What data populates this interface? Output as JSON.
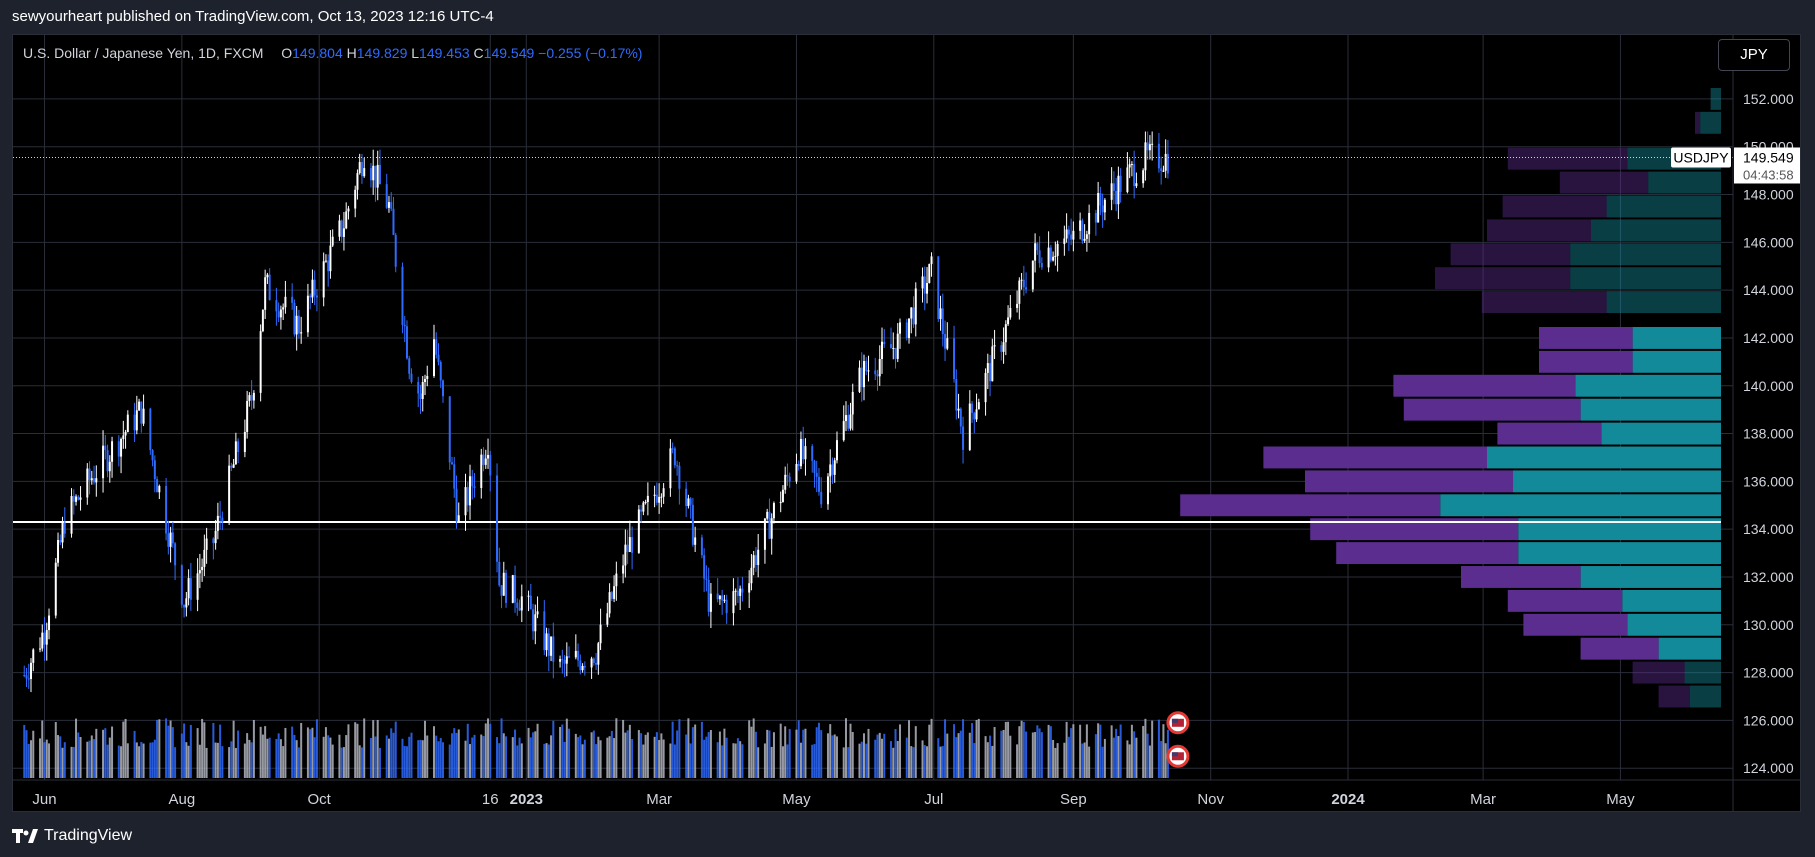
{
  "header": {
    "published_line": "sewyourheart published on TradingView.com, Oct 13, 2023 12:16 UTC-4"
  },
  "legend": {
    "instrument": "U.S. Dollar / Japanese Yen, 1D, FXCM",
    "open_label": "O",
    "open": "149.804",
    "high_label": "H",
    "high": "149.829",
    "low_label": "L",
    "low": "149.453",
    "close_label": "C",
    "close": "149.549",
    "change": "−0.255 (−0.17%)"
  },
  "currency_button": "JPY",
  "price_tag": {
    "symbol": "USDJPY",
    "price": "149.549",
    "countdown": "04:43:58"
  },
  "footer": {
    "brand": "TradingView"
  },
  "colors": {
    "background": "#000000",
    "up_candle": "#ffffff",
    "down_candle": "#2f6bff",
    "volume_up": "#b2b5be",
    "volume_down": "#2f6bff",
    "profile_purple": "#5b2d8f",
    "profile_teal": "#138a99",
    "poc_line": "#ffffff"
  },
  "chart_data": {
    "type": "candlestick",
    "symbol": "USDJPY",
    "timeframe": "1D",
    "y_axis_ticks": [
      "124.000",
      "126.000",
      "128.000",
      "130.000",
      "132.000",
      "134.000",
      "136.000",
      "138.000",
      "140.000",
      "142.000",
      "144.000",
      "146.000",
      "148.000",
      "150.000",
      "152.000"
    ],
    "y_range": [
      123.8,
      153.0
    ],
    "x_axis_ticks": [
      "Jun",
      "Aug",
      "Oct",
      "16",
      "2023",
      "Mar",
      "May",
      "Jul",
      "Sep",
      "Nov",
      "2024",
      "Mar",
      "May"
    ],
    "last_price": 149.549,
    "point_of_control": 134.3,
    "price_path": [
      {
        "date": "2022-05-23",
        "close": 127.9
      },
      {
        "date": "2022-06-01",
        "close": 129.8
      },
      {
        "date": "2022-06-10",
        "close": 134.4
      },
      {
        "date": "2022-06-22",
        "close": 136.2
      },
      {
        "date": "2022-07-14",
        "close": 139.0
      },
      {
        "date": "2022-08-02",
        "close": 131.0
      },
      {
        "date": "2022-08-15",
        "close": 133.5
      },
      {
        "date": "2022-09-01",
        "close": 139.5
      },
      {
        "date": "2022-09-07",
        "close": 144.2
      },
      {
        "date": "2022-09-22",
        "close": 142.5
      },
      {
        "date": "2022-10-12",
        "close": 146.8
      },
      {
        "date": "2022-10-21",
        "close": 149.8
      },
      {
        "date": "2022-11-01",
        "close": 147.5
      },
      {
        "date": "2022-11-10",
        "close": 141.0
      },
      {
        "date": "2022-11-15",
        "close": 139.5
      },
      {
        "date": "2022-11-21",
        "close": 142.0
      },
      {
        "date": "2022-12-02",
        "close": 134.3
      },
      {
        "date": "2022-12-15",
        "close": 137.8
      },
      {
        "date": "2022-12-20",
        "close": 131.8
      },
      {
        "date": "2022-12-30",
        "close": 131.1
      },
      {
        "date": "2023-01-16",
        "close": 128.2
      },
      {
        "date": "2023-02-01",
        "close": 128.9
      },
      {
        "date": "2023-02-14",
        "close": 133.0
      },
      {
        "date": "2023-03-08",
        "close": 137.2
      },
      {
        "date": "2023-03-24",
        "close": 130.7
      },
      {
        "date": "2023-04-05",
        "close": 131.2
      },
      {
        "date": "2023-04-20",
        "close": 134.5
      },
      {
        "date": "2023-05-02",
        "close": 137.3
      },
      {
        "date": "2023-05-12",
        "close": 135.6
      },
      {
        "date": "2023-05-30",
        "close": 140.5
      },
      {
        "date": "2023-06-15",
        "close": 141.8
      },
      {
        "date": "2023-06-30",
        "close": 144.8
      },
      {
        "date": "2023-07-14",
        "close": 138.0
      },
      {
        "date": "2023-07-28",
        "close": 141.2
      },
      {
        "date": "2023-08-15",
        "close": 145.5
      },
      {
        "date": "2023-09-01",
        "close": 146.2
      },
      {
        "date": "2023-09-15",
        "close": 147.8
      },
      {
        "date": "2023-10-03",
        "close": 149.5
      },
      {
        "date": "2023-10-13",
        "close": 149.549
      }
    ],
    "volume_profile": [
      {
        "price": 152.0,
        "purple": 0.0,
        "teal": 0.02
      },
      {
        "price": 151.0,
        "purple": 0.01,
        "teal": 0.04
      },
      {
        "price": 149.5,
        "purple": 0.23,
        "teal": 0.18
      },
      {
        "price": 148.5,
        "purple": 0.17,
        "teal": 0.14
      },
      {
        "price": 147.5,
        "purple": 0.2,
        "teal": 0.22
      },
      {
        "price": 146.5,
        "purple": 0.2,
        "teal": 0.25
      },
      {
        "price": 145.5,
        "purple": 0.23,
        "teal": 0.29
      },
      {
        "price": 144.5,
        "purple": 0.26,
        "teal": 0.29
      },
      {
        "price": 143.5,
        "purple": 0.24,
        "teal": 0.22
      },
      {
        "price": 142.0,
        "purple": 0.18,
        "teal": 0.17
      },
      {
        "price": 141.0,
        "purple": 0.18,
        "teal": 0.17
      },
      {
        "price": 140.0,
        "purple": 0.35,
        "teal": 0.28
      },
      {
        "price": 139.0,
        "purple": 0.34,
        "teal": 0.27
      },
      {
        "price": 138.0,
        "purple": 0.2,
        "teal": 0.23
      },
      {
        "price": 137.0,
        "purple": 0.43,
        "teal": 0.45
      },
      {
        "price": 136.0,
        "purple": 0.4,
        "teal": 0.4
      },
      {
        "price": 135.0,
        "purple": 0.5,
        "teal": 0.54
      },
      {
        "price": 134.0,
        "purple": 0.4,
        "teal": 0.39
      },
      {
        "price": 133.0,
        "purple": 0.35,
        "teal": 0.39
      },
      {
        "price": 132.0,
        "purple": 0.23,
        "teal": 0.27
      },
      {
        "price": 131.0,
        "purple": 0.22,
        "teal": 0.19
      },
      {
        "price": 130.0,
        "purple": 0.2,
        "teal": 0.18
      },
      {
        "price": 129.0,
        "purple": 0.15,
        "teal": 0.12
      },
      {
        "price": 128.0,
        "purple": 0.1,
        "teal": 0.07
      },
      {
        "price": 127.0,
        "purple": 0.06,
        "teal": 0.06
      }
    ]
  }
}
